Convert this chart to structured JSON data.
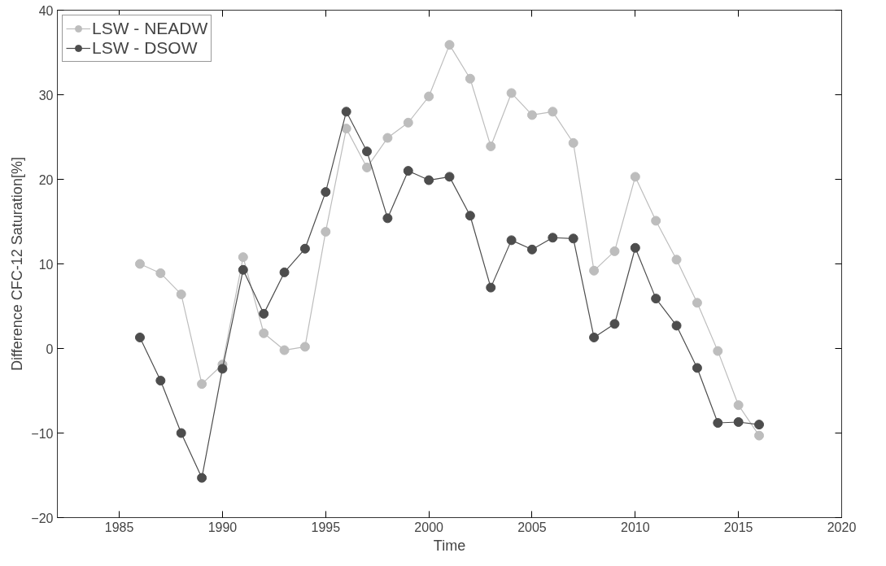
{
  "chart_data": {
    "type": "line",
    "xlabel": "Time",
    "ylabel": "Difference CFC-12 Saturation[%]",
    "x": [
      1986,
      1987,
      1988,
      1989,
      1990,
      1991,
      1992,
      1993,
      1994,
      1995,
      1996,
      1997,
      1998,
      1999,
      2000,
      2001,
      2002,
      2003,
      2004,
      2005,
      2006,
      2007,
      2008,
      2009,
      2010,
      2011,
      2012,
      2013,
      2014,
      2015,
      2016
    ],
    "series": [
      {
        "name": "LSW - NEADW",
        "color": "#bdbdbd",
        "values": [
          10.0,
          8.9,
          6.4,
          -4.2,
          -1.9,
          10.8,
          1.8,
          -0.2,
          0.2,
          13.8,
          26.0,
          21.4,
          24.9,
          26.7,
          29.8,
          35.9,
          31.9,
          23.9,
          30.2,
          27.6,
          28.0,
          24.3,
          9.2,
          11.5,
          20.3,
          15.1,
          10.5,
          5.4,
          -0.3,
          -6.7,
          -10.3
        ]
      },
      {
        "name": "LSW - DSOW",
        "color": "#4d4d4d",
        "values": [
          1.3,
          -3.8,
          -10.0,
          -15.3,
          -2.4,
          9.3,
          4.1,
          9.0,
          11.8,
          18.5,
          28.0,
          23.3,
          15.4,
          21.0,
          19.9,
          20.3,
          15.7,
          7.2,
          12.8,
          11.7,
          13.1,
          13.0,
          1.3,
          2.9,
          11.9,
          5.9,
          2.7,
          -2.3,
          -8.8,
          -8.7,
          -9.0
        ]
      }
    ],
    "xlim": [
      1982,
      2020
    ],
    "xticks": [
      1985,
      1990,
      1995,
      2000,
      2005,
      2010,
      2015,
      2020
    ],
    "ylim": [
      -20,
      40
    ],
    "yticks": [
      -20,
      -10,
      0,
      10,
      20,
      30,
      40
    ],
    "grid": false,
    "legend": "top left",
    "marker": "circle",
    "line_style": "solid"
  }
}
